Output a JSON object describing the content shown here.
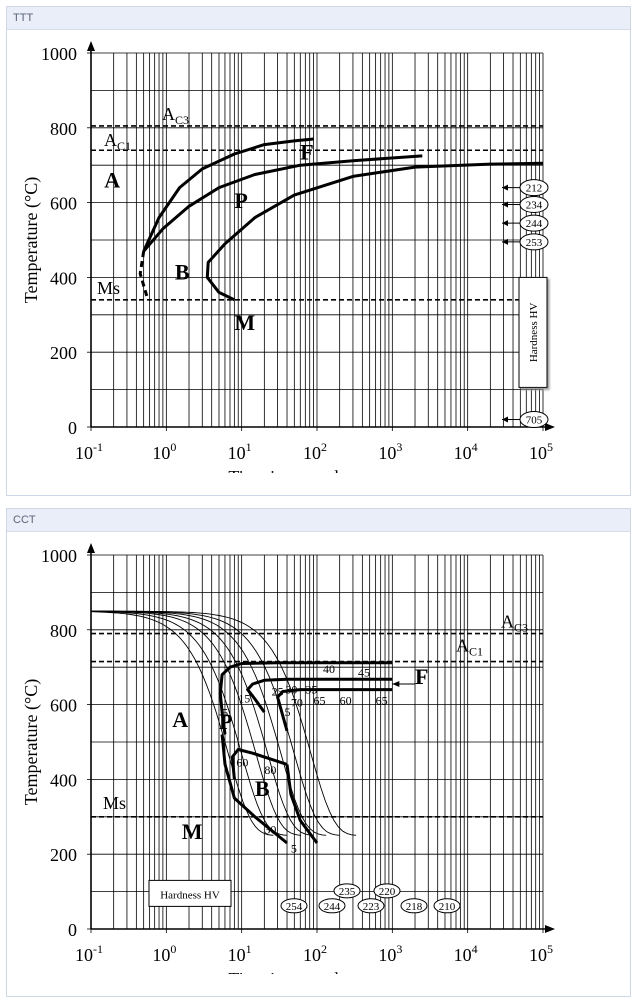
{
  "panels": [
    {
      "id": "ttt",
      "title": "TTT"
    },
    {
      "id": "cct",
      "title": "CCT"
    }
  ],
  "chart_data": [
    {
      "type": "line",
      "title": "TTT",
      "xlabel": "Time in seconds",
      "ylabel": "Temperature (°C)",
      "x_scale": "log",
      "xlim": [
        0.1,
        100000
      ],
      "ylim": [
        0,
        1000
      ],
      "x_ticks": [
        0.1,
        1,
        10,
        100,
        1000,
        10000,
        100000
      ],
      "x_tick_labels": [
        {
          "base": "10",
          "exp": "-1"
        },
        {
          "base": "10",
          "exp": "0"
        },
        {
          "base": "10",
          "exp": "1"
        },
        {
          "base": "10",
          "exp": "2"
        },
        {
          "base": "10",
          "exp": "3"
        },
        {
          "base": "10",
          "exp": "4"
        },
        {
          "base": "10",
          "exp": "5"
        }
      ],
      "y_ticks": [
        0,
        200,
        400,
        600,
        800,
        1000
      ],
      "y_tick_labels": [
        "0",
        "200",
        "400",
        "600",
        "800",
        "1000"
      ],
      "grid": true,
      "reference_lines": [
        {
          "label": "A",
          "sub": "C3",
          "y": 805
        },
        {
          "label": "A",
          "sub": "C1",
          "y": 740
        },
        {
          "label": "Ms",
          "sub": "",
          "y": 340
        }
      ],
      "series": [
        {
          "x": [
            0.5,
            0.8,
            1.5,
            3,
            8,
            20,
            50,
            90
          ],
          "y": [
            470,
            560,
            640,
            690,
            730,
            755,
            765,
            770
          ]
        },
        {
          "x": [
            0.5,
            0.9,
            2,
            5,
            15,
            60,
            300,
            2500
          ],
          "y": [
            470,
            530,
            590,
            640,
            675,
            700,
            712,
            725
          ]
        },
        {
          "x": [
            8,
            5,
            3.5,
            3.6,
            6,
            15,
            50,
            300,
            2000,
            20000,
            100000
          ],
          "y": [
            340,
            360,
            400,
            440,
            490,
            560,
            620,
            670,
            695,
            703,
            705
          ]
        },
        {
          "x": [
            0.5,
            0.45,
            0.55
          ],
          "y": [
            470,
            410,
            350
          ],
          "dashed": true
        }
      ],
      "region_labels": [
        {
          "text": "A",
          "x": 0.15,
          "y": 640
        },
        {
          "text": "F",
          "x": 60,
          "y": 715
        },
        {
          "text": "P",
          "x": 8,
          "y": 585
        },
        {
          "text": "B",
          "x": 1.3,
          "y": 395
        },
        {
          "text": "M",
          "x": 8,
          "y": 260
        }
      ],
      "hardness_title": "Hardness HV",
      "hardness_values": [
        {
          "value": "212",
          "y": 640
        },
        {
          "value": "234",
          "y": 595
        },
        {
          "value": "244",
          "y": 545
        },
        {
          "value": "253",
          "y": 495
        },
        {
          "value": "705",
          "y": 20
        }
      ]
    },
    {
      "type": "line",
      "title": "CCT",
      "xlabel": "Time in seconds",
      "ylabel": "Temperature (°C)",
      "x_scale": "log",
      "xlim": [
        0.1,
        100000
      ],
      "ylim": [
        0,
        1000
      ],
      "x_ticks": [
        0.1,
        1,
        10,
        100,
        1000,
        10000,
        100000
      ],
      "x_tick_labels": [
        {
          "base": "10",
          "exp": "-1"
        },
        {
          "base": "10",
          "exp": "0"
        },
        {
          "base": "10",
          "exp": "1"
        },
        {
          "base": "10",
          "exp": "2"
        },
        {
          "base": "10",
          "exp": "3"
        },
        {
          "base": "10",
          "exp": "4"
        },
        {
          "base": "10",
          "exp": "5"
        }
      ],
      "y_ticks": [
        0,
        200,
        400,
        600,
        800,
        1000
      ],
      "y_tick_labels": [
        "0",
        "200",
        "400",
        "600",
        "800",
        "1000"
      ],
      "grid": true,
      "reference_lines": [
        {
          "label": "A",
          "sub": "C3",
          "y": 790
        },
        {
          "label": "A",
          "sub": "C1",
          "y": 715
        },
        {
          "label": "Ms",
          "sub": "",
          "y": 300
        }
      ],
      "cooling_curves": [
        {
          "end_t": 12,
          "hv": "254"
        },
        {
          "end_t": 18,
          "hv": "244"
        },
        {
          "end_t": 28,
          "hv": "235"
        },
        {
          "end_t": 40,
          "hv": "223"
        },
        {
          "end_t": 60,
          "hv": "220"
        },
        {
          "end_t": 90,
          "hv": "218"
        },
        {
          "end_t": 150,
          "hv": "210"
        }
      ],
      "series": [
        {
          "x": [
            6,
            5.5,
            5.2,
            5.5,
            7,
            10,
            30,
            100,
            1000
          ],
          "y": [
            520,
            580,
            630,
            680,
            700,
            710,
            712,
            712,
            712
          ]
        },
        {
          "x": [
            20,
            15,
            12,
            14,
            20,
            40,
            150,
            1000
          ],
          "y": [
            580,
            615,
            640,
            655,
            665,
            668,
            668,
            668
          ]
        },
        {
          "x": [
            40,
            33,
            30,
            35,
            60,
            200,
            1000
          ],
          "y": [
            530,
            590,
            620,
            635,
            640,
            640,
            640
          ]
        },
        {
          "x": [
            5.5,
            6,
            8,
            15,
            40
          ],
          "y": [
            520,
            440,
            350,
            300,
            230
          ]
        },
        {
          "x": [
            8,
            7.5,
            9,
            14,
            40
          ],
          "y": [
            400,
            460,
            480,
            470,
            440
          ]
        },
        {
          "x": [
            40,
            45,
            60,
            100
          ],
          "y": [
            440,
            360,
            290,
            230
          ]
        }
      ],
      "region_labels": [
        {
          "text": "A",
          "x": 1.2,
          "y": 540
        },
        {
          "text": "P",
          "x": 5,
          "y": 535
        },
        {
          "text": "B",
          "x": 15,
          "y": 355
        },
        {
          "text": "F",
          "x": 2000,
          "y": 655
        },
        {
          "text": "M",
          "x": 1.6,
          "y": 240
        }
      ],
      "transformation_labels": [
        {
          "text": "40",
          "x": 120,
          "y": 685
        },
        {
          "text": "45",
          "x": 350,
          "y": 675
        },
        {
          "text": "25",
          "x": 25,
          "y": 625
        },
        {
          "text": "30",
          "x": 38,
          "y": 630
        },
        {
          "text": "35",
          "x": 70,
          "y": 630
        },
        {
          "text": "5",
          "x": 5.5,
          "y": 568
        },
        {
          "text": "15",
          "x": 9,
          "y": 605
        },
        {
          "text": "70",
          "x": 45,
          "y": 595
        },
        {
          "text": "65",
          "x": 90,
          "y": 600
        },
        {
          "text": "60",
          "x": 200,
          "y": 600
        },
        {
          "text": "65",
          "x": 600,
          "y": 600
        },
        {
          "text": "5",
          "x": 37,
          "y": 570
        },
        {
          "text": "60",
          "x": 8.5,
          "y": 435
        },
        {
          "text": "80",
          "x": 20,
          "y": 415
        },
        {
          "text": "30",
          "x": 20,
          "y": 255
        },
        {
          "text": "5",
          "x": 45,
          "y": 205
        }
      ],
      "hardness_title": "Hardness HV"
    }
  ]
}
